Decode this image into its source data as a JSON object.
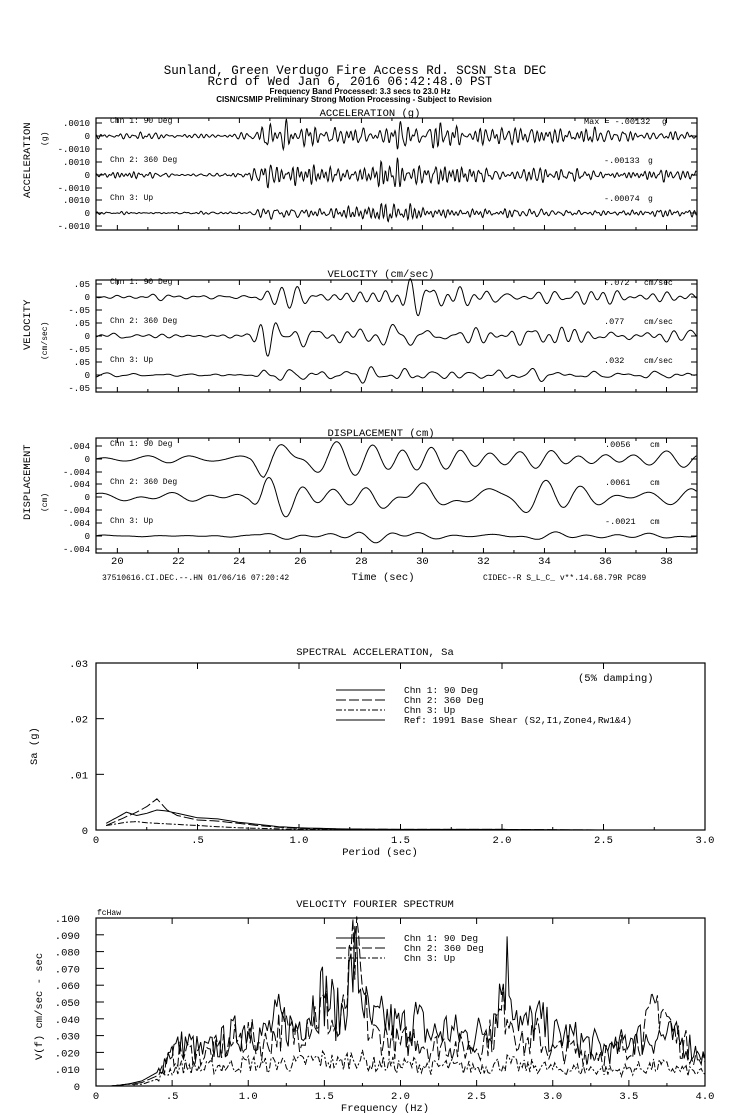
{
  "header": {
    "line1": "Sunland, Green Verdugo Fire Access Rd.    SCSN Sta DEC",
    "line2": "Rcrd of Wed Jan  6, 2016 06:42:48.0 PST",
    "line3": "Frequency Band Processed: 3.3 secs to 23.0 Hz",
    "line4": "CISN/CSMIP Preliminary Strong Motion Processing - Subject to Revision"
  },
  "footer": {
    "left": "37510616.CI.DEC.--.HN 01/06/16 07:20:42",
    "right": "CIDEC--R  S_L_C_  v**.14.68.79R PC89"
  },
  "chart_data": [
    {
      "type": "line",
      "title": "ACCELERATION (g)",
      "ylabel": "ACCELERATION",
      "yunit": "(g)",
      "xlabel": "Time (sec)",
      "xlim": [
        19.3,
        39.0
      ],
      "xticks": [
        "20",
        "22",
        "24",
        "26",
        "28",
        "30",
        "32",
        "34",
        "36",
        "38"
      ],
      "yticks": [
        ".0010",
        "0",
        "-.0010"
      ],
      "yrange": [
        -0.001,
        0.001
      ],
      "max_prefix": "Max =",
      "unit": "g",
      "series": [
        {
          "name": "Chn 1: 90 Deg",
          "peak": "-.00132",
          "peak_value": -0.00132
        },
        {
          "name": "Chn 2: 360 Deg",
          "peak": "-.00133",
          "peak_value": -0.00133
        },
        {
          "name": "Chn 3: Up",
          "peak": "-.00074",
          "peak_value": -0.00074
        }
      ]
    },
    {
      "type": "line",
      "title": "VELOCITY (cm/sec)",
      "ylabel": "VELOCITY",
      "yunit": "(cm/sec)",
      "xlim": [
        19.3,
        39.0
      ],
      "yticks": [
        ".05",
        "0",
        "-.05"
      ],
      "yrange": [
        -0.05,
        0.05
      ],
      "unit": "cm/sec",
      "series": [
        {
          "name": "Chn 1: 90 Deg",
          "peak": "-.072",
          "peak_value": -0.072
        },
        {
          "name": "Chn 2: 360 Deg",
          "peak": ".077",
          "peak_value": 0.077
        },
        {
          "name": "Chn 3: Up",
          "peak": ".032",
          "peak_value": 0.032
        }
      ]
    },
    {
      "type": "line",
      "title": "DISPLACEMENT (cm)",
      "ylabel": "DISPLACEMENT",
      "yunit": "(cm)",
      "xlim": [
        19.3,
        39.0
      ],
      "yticks": [
        ".004",
        "0",
        "-.004"
      ],
      "yrange": [
        -0.004,
        0.004
      ],
      "unit": "cm",
      "series": [
        {
          "name": "Chn 1: 90 Deg",
          "peak": ".0056",
          "peak_value": 0.0056
        },
        {
          "name": "Chn 2: 360 Deg",
          "peak": ".0061",
          "peak_value": 0.0061
        },
        {
          "name": "Chn 3: Up",
          "peak": "-.0021",
          "peak_value": -0.0021
        }
      ]
    },
    {
      "type": "line",
      "title": "SPECTRAL ACCELERATION, Sa",
      "xlabel": "Period (sec)",
      "ylabel": "Sa (g)",
      "note": "(5% damping)",
      "xlim": [
        0,
        3.0
      ],
      "ylim": [
        0,
        0.03
      ],
      "xticks": [
        "0",
        ".5",
        "1.0",
        "1.5",
        "2.0",
        "2.5",
        "3.0"
      ],
      "yticks": [
        "0",
        ".01",
        ".02",
        ".03"
      ],
      "legend": [
        "Chn 1: 90 Deg",
        "Chn 2: 360 Deg",
        "Chn 3: Up",
        "Ref: 1991 Base Shear (S2,I1,Zone4,Rw1&4)"
      ],
      "x": [
        0.05,
        0.1,
        0.15,
        0.2,
        0.25,
        0.3,
        0.35,
        0.4,
        0.5,
        0.6,
        0.7,
        0.8,
        0.9,
        1.0,
        1.2,
        1.5,
        2.0,
        2.5,
        3.0
      ],
      "series": [
        {
          "name": "Chn 1: 90 Deg",
          "values": [
            0.0012,
            0.0022,
            0.0032,
            0.0026,
            0.003,
            0.0036,
            0.0034,
            0.003,
            0.0022,
            0.002,
            0.0014,
            0.001,
            0.0006,
            0.0004,
            0.0002,
            0.0001,
            0.0001,
            0.0,
            0.0
          ]
        },
        {
          "name": "Chn 2: 360 Deg",
          "values": [
            0.0008,
            0.0016,
            0.0024,
            0.0032,
            0.0042,
            0.0056,
            0.0036,
            0.0026,
            0.0018,
            0.0016,
            0.0012,
            0.0008,
            0.0005,
            0.0003,
            0.0002,
            0.0001,
            0.0001,
            0.0,
            0.0
          ]
        },
        {
          "name": "Chn 3: Up",
          "values": [
            0.0008,
            0.0011,
            0.0014,
            0.0015,
            0.0013,
            0.0012,
            0.0011,
            0.001,
            0.0008,
            0.0006,
            0.0004,
            0.0003,
            0.0002,
            0.0001,
            0.0001,
            0.0,
            0.0,
            0.0,
            0.0
          ]
        }
      ]
    },
    {
      "type": "line",
      "title": "VELOCITY FOURIER SPECTRUM",
      "corner_label": "fcHaw",
      "xlabel": "Frequency (Hz)",
      "ylabel": "V(f)   cm/sec - sec",
      "xlim": [
        0,
        4.0
      ],
      "ylim": [
        0,
        0.1
      ],
      "xticks": [
        "0",
        ".5",
        "1.0",
        "1.5",
        "2.0",
        "2.5",
        "3.0",
        "3.5",
        "4.0"
      ],
      "yticks": [
        "0",
        ".010",
        ".020",
        ".030",
        ".040",
        ".050",
        ".060",
        ".070",
        ".080",
        ".090",
        ".100"
      ],
      "legend": [
        "Chn 1: 90 Deg",
        "Chn 2: 360 Deg",
        "Chn 3: Up"
      ],
      "x": [
        0,
        0.1,
        0.2,
        0.3,
        0.4,
        0.5,
        0.6,
        0.7,
        0.8,
        0.9,
        1.0,
        1.1,
        1.2,
        1.3,
        1.4,
        1.5,
        1.6,
        1.7,
        1.8,
        1.9,
        2.0,
        2.1,
        2.2,
        2.3,
        2.4,
        2.5,
        2.6,
        2.7,
        2.8,
        2.9,
        3.0,
        3.1,
        3.2,
        3.3,
        3.4,
        3.5,
        3.6,
        3.7,
        3.8,
        3.9,
        4.0
      ],
      "series": [
        {
          "name": "Chn 1: 90 Deg",
          "values": [
            0,
            0,
            0.001,
            0.003,
            0.008,
            0.022,
            0.026,
            0.02,
            0.024,
            0.03,
            0.036,
            0.03,
            0.04,
            0.034,
            0.046,
            0.056,
            0.04,
            0.074,
            0.036,
            0.04,
            0.034,
            0.04,
            0.03,
            0.034,
            0.03,
            0.03,
            0.04,
            0.07,
            0.034,
            0.04,
            0.03,
            0.03,
            0.026,
            0.024,
            0.02,
            0.03,
            0.028,
            0.03,
            0.028,
            0.024,
            0.016
          ]
        },
        {
          "name": "Chn 2: 360 Deg",
          "values": [
            0,
            0,
            0.001,
            0.002,
            0.006,
            0.018,
            0.02,
            0.018,
            0.022,
            0.026,
            0.03,
            0.024,
            0.034,
            0.03,
            0.04,
            0.046,
            0.03,
            0.08,
            0.03,
            0.03,
            0.024,
            0.03,
            0.022,
            0.026,
            0.022,
            0.024,
            0.03,
            0.05,
            0.024,
            0.03,
            0.02,
            0.022,
            0.02,
            0.02,
            0.02,
            0.026,
            0.03,
            0.052,
            0.03,
            0.022,
            0.014
          ]
        },
        {
          "name": "Chn 3: Up",
          "values": [
            0,
            0,
            0.001,
            0.001,
            0.004,
            0.01,
            0.012,
            0.01,
            0.012,
            0.012,
            0.014,
            0.012,
            0.014,
            0.013,
            0.015,
            0.016,
            0.013,
            0.018,
            0.013,
            0.013,
            0.012,
            0.013,
            0.011,
            0.012,
            0.011,
            0.011,
            0.012,
            0.014,
            0.011,
            0.012,
            0.01,
            0.01,
            0.01,
            0.01,
            0.009,
            0.01,
            0.011,
            0.012,
            0.01,
            0.009,
            0.007
          ]
        }
      ]
    }
  ]
}
